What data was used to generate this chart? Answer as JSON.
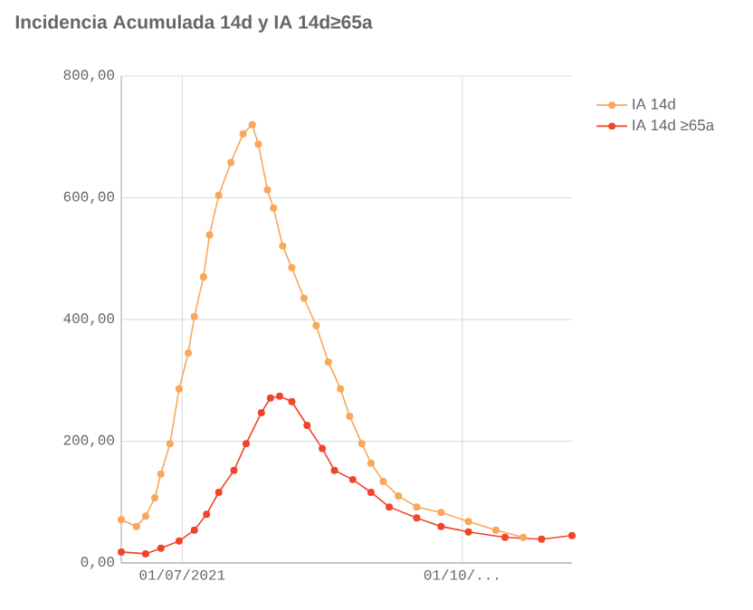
{
  "chart_data": {
    "type": "line",
    "title": "Incidencia Acumulada 14d y IA 14d≥65a",
    "xlim": [
      "2021-06-11",
      "2021-11-06"
    ],
    "ylim": [
      0,
      800
    ],
    "xticks": [
      {
        "value": "2021-07-01",
        "label": "01/07/2021"
      },
      {
        "value": "2021-10-01",
        "label": "01/10/..."
      }
    ],
    "yticks": [
      {
        "value": 0,
        "label": "0,00"
      },
      {
        "value": 200,
        "label": "200,00"
      },
      {
        "value": 400,
        "label": "400,00"
      },
      {
        "value": 600,
        "label": "600,00"
      },
      {
        "value": 800,
        "label": "800,00"
      }
    ],
    "grid": true,
    "legend": "top right",
    "marker": "circle",
    "line_style": "solid",
    "series": [
      {
        "name": "IA 14d",
        "color": "#f9a75a",
        "x": [
          "2021-06-11",
          "2021-06-16",
          "2021-06-19",
          "2021-06-22",
          "2021-06-24",
          "2021-06-27",
          "2021-06-30",
          "2021-07-03",
          "2021-07-05",
          "2021-07-08",
          "2021-07-10",
          "2021-07-13",
          "2021-07-17",
          "2021-07-21",
          "2021-07-24",
          "2021-07-26",
          "2021-07-29",
          "2021-07-31",
          "2021-08-03",
          "2021-08-06",
          "2021-08-10",
          "2021-08-14",
          "2021-08-18",
          "2021-08-22",
          "2021-08-25",
          "2021-08-29",
          "2021-09-01",
          "2021-09-05",
          "2021-09-10",
          "2021-09-16",
          "2021-09-24",
          "2021-10-03",
          "2021-10-12",
          "2021-10-21"
        ],
        "values": [
          71,
          60,
          77,
          107,
          146,
          196,
          286,
          345,
          405,
          470,
          539,
          604,
          658,
          705,
          720,
          688,
          613,
          583,
          521,
          485,
          435,
          390,
          330,
          286,
          241,
          196,
          164,
          134,
          110,
          92,
          83,
          68,
          54,
          42
        ]
      },
      {
        "name": "IA 14d ≥65a",
        "color": "#f0452c",
        "x": [
          "2021-06-11",
          "2021-06-19",
          "2021-06-24",
          "2021-06-30",
          "2021-07-05",
          "2021-07-09",
          "2021-07-13",
          "2021-07-18",
          "2021-07-22",
          "2021-07-27",
          "2021-07-30",
          "2021-08-02",
          "2021-08-06",
          "2021-08-11",
          "2021-08-16",
          "2021-08-20",
          "2021-08-26",
          "2021-09-01",
          "2021-09-07",
          "2021-09-16",
          "2021-09-24",
          "2021-10-03",
          "2021-10-15",
          "2021-10-27",
          "2021-11-06"
        ],
        "values": [
          18,
          15,
          24,
          36,
          54,
          80,
          116,
          152,
          196,
          247,
          271,
          274,
          265,
          226,
          188,
          152,
          137,
          116,
          92,
          74,
          60,
          51,
          42,
          39,
          45
        ]
      }
    ]
  }
}
